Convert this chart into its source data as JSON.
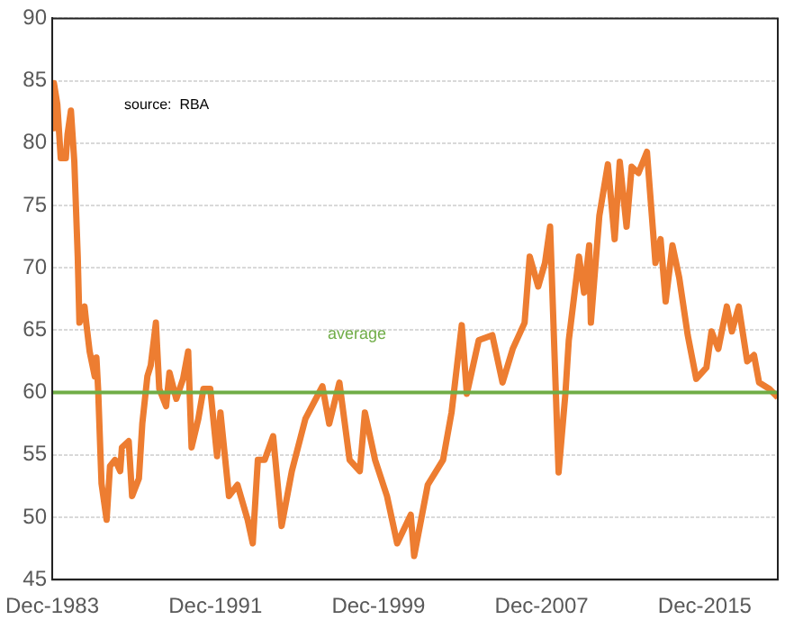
{
  "chart_data": {
    "type": "line",
    "x": [
      "1983-12",
      "1984-01",
      "1984-03",
      "1984-05",
      "1984-08",
      "1984-09",
      "1984-11",
      "1985-01",
      "1985-03",
      "1985-04",
      "1985-07",
      "1985-08",
      "1985-10",
      "1986-01",
      "1986-02",
      "1986-03",
      "1986-05",
      "1986-08",
      "1986-10",
      "1987-01",
      "1987-04",
      "1987-05",
      "1987-09",
      "1987-11",
      "1988-03",
      "1988-05",
      "1988-08",
      "1988-10",
      "1989-01",
      "1989-03",
      "1989-07",
      "1989-09",
      "1990-01",
      "1990-05",
      "1990-08",
      "1990-10",
      "1991-02",
      "1991-05",
      "1991-09",
      "1992-01",
      "1992-03",
      "1992-08",
      "1993-01",
      "1993-07",
      "1993-10",
      "1994-01",
      "1994-05",
      "1994-10",
      "1995-03",
      "1995-09",
      "1996-05",
      "1997-03",
      "1997-07",
      "1998-01",
      "1998-07",
      "1999-01",
      "1999-04",
      "1999-10",
      "2000-05",
      "2000-11",
      "2001-07",
      "2001-09",
      "2002-05",
      "2003-02",
      "2003-07",
      "2004-01",
      "2004-04",
      "2004-11",
      "2005-07",
      "2006-01",
      "2006-07",
      "2007-02",
      "2007-05",
      "2007-10",
      "2008-02",
      "2008-05",
      "2008-10",
      "2009-02",
      "2009-04",
      "2009-10",
      "2010-01",
      "2010-04",
      "2010-05",
      "2010-10",
      "2011-03",
      "2011-07",
      "2011-10",
      "2012-02",
      "2012-05",
      "2012-09",
      "2013-02",
      "2013-07",
      "2013-10",
      "2014-01",
      "2014-05",
      "2014-09",
      "2015-02",
      "2015-07",
      "2016-01",
      "2016-04",
      "2016-08",
      "2017-01",
      "2017-04",
      "2017-08",
      "2018-01",
      "2018-05",
      "2018-08",
      "2019-02",
      "2019-07"
    ],
    "series": [
      {
        "color": "#ed7d31",
        "values": [
          81.2,
          84.8,
          83.1,
          78.8,
          78.8,
          80.7,
          82.6,
          78.5,
          70.9,
          65.6,
          66.9,
          65.6,
          63.3,
          61.3,
          62.8,
          60.3,
          52.7,
          49.8,
          54.1,
          54.6,
          53.7,
          55.6,
          56.1,
          51.7,
          53.1,
          57.5,
          61.3,
          62.2,
          65.6,
          60.3,
          58.9,
          61.6,
          59.5,
          61.1,
          63.3,
          55.6,
          57.9,
          60.3,
          60.3,
          54.9,
          58.4,
          51.7,
          52.6,
          49.8,
          47.9,
          54.6,
          54.6,
          56.5,
          49.3,
          53.7,
          57.9,
          60.5,
          57.5,
          60.8,
          54.6,
          53.7,
          58.4,
          54.6,
          51.7,
          47.9,
          50.2,
          46.9,
          52.6,
          54.6,
          58.4,
          65.4,
          59.9,
          64.2,
          64.6,
          60.8,
          63.5,
          65.6,
          70.9,
          68.5,
          70.4,
          73.3,
          53.6,
          59.9,
          64.2,
          70.9,
          68.0,
          71.8,
          65.6,
          74.2,
          78.3,
          72.3,
          78.5,
          73.3,
          78.1,
          77.6,
          79.3,
          70.4,
          72.3,
          67.3,
          71.8,
          69.2,
          64.6,
          61.1,
          62.0,
          64.9,
          63.5,
          66.9,
          64.9,
          66.9,
          62.5,
          63.0,
          60.8,
          60.3,
          59.6
        ]
      }
    ],
    "xlim": [
      "1983-12",
      "2019-07"
    ],
    "xticks": [
      {
        "value": "1983-12",
        "label": "Dec-1983"
      },
      {
        "value": "1991-12",
        "label": "Dec-1991"
      },
      {
        "value": "1999-12",
        "label": "Dec-1999"
      },
      {
        "value": "2007-12",
        "label": "Dec-2007"
      },
      {
        "value": "2015-12",
        "label": "Dec-2015"
      }
    ],
    "ylim": [
      45,
      90
    ],
    "yticks": [
      45,
      50,
      55,
      60,
      65,
      70,
      75,
      80,
      85,
      90
    ],
    "grid": "y",
    "legend": false,
    "marker": "none",
    "line_style": "solid",
    "ref_lines": [
      {
        "axis": "y",
        "value": 60,
        "label": "average",
        "color": "#70ad47"
      }
    ],
    "annotations": [
      "source:  RBA"
    ]
  }
}
